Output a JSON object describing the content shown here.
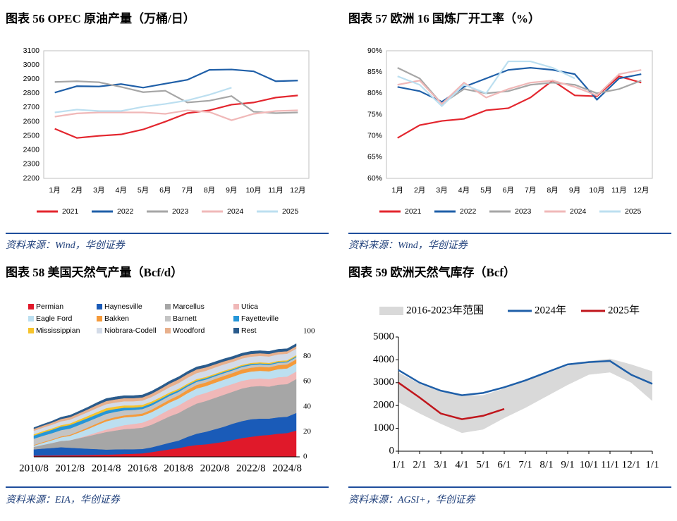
{
  "chart_data": [
    {
      "type": "line",
      "title": "图表 56   OPEC 原油产量（万桶/日）",
      "source": "资料来源：Wind，华创证券",
      "categories": [
        "1月",
        "2月",
        "3月",
        "4月",
        "5月",
        "6月",
        "7月",
        "8月",
        "9月",
        "10月",
        "11月",
        "12月"
      ],
      "ylim": [
        2200,
        3100
      ],
      "yticks": [
        2200,
        2300,
        2400,
        2500,
        2600,
        2700,
        2800,
        2900,
        3000,
        3100
      ],
      "series": [
        {
          "name": "2021",
          "color": "#e3262e",
          "values": [
            2550,
            2485,
            2500,
            2510,
            2545,
            2600,
            2660,
            2680,
            2720,
            2735,
            2770,
            2785
          ]
        },
        {
          "name": "2022",
          "color": "#1f5fa8",
          "values": [
            2805,
            2850,
            2848,
            2865,
            2840,
            2868,
            2895,
            2965,
            2968,
            2955,
            2885,
            2890
          ]
        },
        {
          "name": "2023",
          "color": "#a6a6a6",
          "values": [
            2880,
            2885,
            2878,
            2845,
            2808,
            2818,
            2735,
            2748,
            2780,
            2670,
            2660,
            2665
          ]
        },
        {
          "name": "2024",
          "color": "#f0b8b8",
          "values": [
            2635,
            2658,
            2665,
            2665,
            2665,
            2655,
            2680,
            2668,
            2610,
            2655,
            2675,
            2680
          ]
        },
        {
          "name": "2025",
          "color": "#bcdff0",
          "values": [
            2665,
            2685,
            2675,
            2675,
            2705,
            2725,
            2750,
            2790,
            2840,
            null,
            null,
            null
          ]
        }
      ]
    },
    {
      "type": "line",
      "title": "图表 57   欧洲 16 国炼厂开工率（%）",
      "source": "资料来源：Wind，华创证券",
      "categories": [
        "1月",
        "2月",
        "3月",
        "4月",
        "5月",
        "6月",
        "7月",
        "8月",
        "9月",
        "10月",
        "11月",
        "12月"
      ],
      "ylim": [
        60,
        90
      ],
      "yticks": [
        {
          "value": 60,
          "label": "60%"
        },
        {
          "value": 65,
          "label": "65%"
        },
        {
          "value": 70,
          "label": "70%"
        },
        {
          "value": 75,
          "label": "75%"
        },
        {
          "value": 80,
          "label": "80%"
        },
        {
          "value": 85,
          "label": "85%"
        },
        {
          "value": 90,
          "label": "90%"
        }
      ],
      "series": [
        {
          "name": "2021",
          "color": "#e3262e",
          "values": [
            69.5,
            72.5,
            73.5,
            74,
            76,
            76.5,
            79,
            83,
            79.5,
            79.3,
            84,
            82.5
          ]
        },
        {
          "name": "2022",
          "color": "#1f5fa8",
          "values": [
            81.5,
            80.5,
            78,
            81.5,
            83.5,
            85.5,
            86,
            85.5,
            84.5,
            78.5,
            83.5,
            84.5
          ]
        },
        {
          "name": "2023",
          "color": "#a6a6a6",
          "values": [
            86,
            83.5,
            77.5,
            81,
            80,
            80.5,
            82,
            82.5,
            82,
            80,
            81,
            83
          ]
        },
        {
          "name": "2024",
          "color": "#f0b8b8",
          "values": [
            82,
            83,
            77.5,
            82.5,
            79,
            81,
            82.5,
            83,
            81.5,
            79.5,
            84.5,
            85.5
          ]
        },
        {
          "name": "2025",
          "color": "#bcdff0",
          "values": [
            84,
            82,
            77,
            82,
            80,
            87.5,
            87.5,
            86,
            83.5,
            null,
            null,
            null
          ]
        }
      ]
    },
    {
      "type": "stacked_area",
      "title": "图表 58   美国天然气产量（Bcf/d）",
      "source": "资料来源：EIA，华创证券",
      "y_axis": "right",
      "x": [
        "2010/8",
        "2011/2",
        "2011/8",
        "2012/2",
        "2012/8",
        "2013/2",
        "2013/8",
        "2014/2",
        "2014/8",
        "2015/2",
        "2015/8",
        "2016/2",
        "2016/8",
        "2017/2",
        "2017/8",
        "2018/2",
        "2018/8",
        "2019/2",
        "2019/8",
        "2020/2",
        "2020/8",
        "2021/2",
        "2021/8",
        "2022/2",
        "2022/8",
        "2023/2",
        "2023/8",
        "2024/2",
        "2024/8",
        "2025/2"
      ],
      "ylim": [
        0,
        100
      ],
      "yticks": [
        0,
        20,
        40,
        60,
        80,
        100
      ],
      "series": [
        {
          "name": "Permian",
          "color": "#e0192a",
          "values": [
            1,
            1.1,
            1.1,
            1.2,
            1.3,
            1.4,
            1.5,
            1.7,
            1.8,
            2,
            2.3,
            2.5,
            2.8,
            3.8,
            4.9,
            6,
            7,
            8.5,
            9.5,
            10,
            11,
            12,
            13.5,
            15,
            16,
            17,
            17.5,
            18.5,
            19,
            21
          ]
        },
        {
          "name": "Haynesville",
          "color": "#1a5bb8",
          "values": [
            5,
            5.5,
            6,
            6.5,
            6,
            5.5,
            5,
            4.5,
            4,
            4,
            3.8,
            3.6,
            3.5,
            3.8,
            4.5,
            5.3,
            6,
            7.5,
            9,
            10,
            11,
            12,
            13,
            13.5,
            14,
            13.5,
            13,
            13,
            13,
            14
          ]
        },
        {
          "name": "Marcellus",
          "color": "#a6a6a6",
          "values": [
            2,
            3,
            4,
            5,
            6,
            8,
            10,
            12,
            14,
            15,
            16,
            16.5,
            17,
            18,
            19.5,
            21,
            22,
            23,
            24,
            24.5,
            25,
            25.5,
            25.5,
            26,
            26,
            26,
            25.5,
            26,
            26,
            27
          ]
        },
        {
          "name": "Utica",
          "color": "#f0b8b8",
          "values": [
            0,
            0,
            0,
            0,
            0,
            0.3,
            0.8,
            1.4,
            2,
            2.6,
            3.2,
            3.6,
            4,
            4.5,
            5,
            5.5,
            6,
            6.2,
            6.4,
            6.5,
            6.5,
            6.4,
            6.2,
            6.1,
            6,
            6,
            6,
            6,
            6,
            6
          ]
        },
        {
          "name": "Eagle Ford",
          "color": "#bcdff0",
          "values": [
            1,
            1.6,
            2.2,
            2.9,
            3.5,
            4.3,
            5,
            5.8,
            6.5,
            6.5,
            6.2,
            5.8,
            5.5,
            5.5,
            5.5,
            5.5,
            5.5,
            5.6,
            5.6,
            5.4,
            5.5,
            5.6,
            5.7,
            5.9,
            6,
            6.1,
            6.2,
            6.4,
            6.5,
            6.5
          ]
        },
        {
          "name": "Bakken",
          "color": "#f59a3a",
          "values": [
            0.5,
            0.6,
            0.6,
            0.7,
            0.8,
            1,
            1.2,
            1.3,
            1.5,
            1.6,
            1.6,
            1.7,
            1.8,
            2,
            2.2,
            2.3,
            2.5,
            2.7,
            2.8,
            2.9,
            3,
            3,
            3,
            3.1,
            3.1,
            3.2,
            3.2,
            3.2,
            3.2,
            3.2
          ]
        },
        {
          "name": "Barnett",
          "color": "#c4c4c4",
          "values": [
            5,
            5,
            5,
            5,
            5,
            4.9,
            4.8,
            4.6,
            4.5,
            4.2,
            4,
            3.7,
            3.5,
            3.3,
            3.1,
            3,
            2.8,
            2.6,
            2.5,
            2.3,
            2.2,
            2.2,
            2.1,
            2,
            2,
            1.9,
            1.8,
            1.8,
            1.7,
            1.7
          ]
        },
        {
          "name": "Fayetteville",
          "color": "#2596d8",
          "values": [
            2.5,
            2.6,
            2.7,
            2.8,
            2.8,
            2.8,
            2.7,
            2.6,
            2.5,
            2.3,
            2.1,
            1.9,
            1.8,
            1.7,
            1.5,
            1.4,
            1.3,
            1.2,
            1.1,
            1.1,
            1,
            1,
            0.9,
            0.9,
            0.9,
            0.8,
            0.8,
            0.7,
            0.7,
            0.7
          ]
        },
        {
          "name": "Mississippian",
          "color": "#f6c32b",
          "values": [
            1,
            1.1,
            1.1,
            1.2,
            1.3,
            1.5,
            1.7,
            1.9,
            2,
            1.9,
            1.8,
            1.7,
            1.6,
            1.5,
            1.4,
            1.3,
            1.2,
            1.1,
            1.1,
            1,
            1,
            1,
            0.9,
            0.9,
            0.9,
            0.9,
            0.9,
            0.9,
            0.9,
            0.9
          ]
        },
        {
          "name": "Niobrara-Codell",
          "color": "#d3dbe8",
          "values": [
            2.8,
            2.8,
            2.9,
            3,
            3,
            3,
            3.1,
            3.2,
            3.2,
            3.2,
            3.3,
            3.3,
            3.4,
            3.6,
            3.9,
            4.2,
            4.5,
            4.7,
            4.8,
            4.9,
            5,
            5,
            5,
            5,
            5,
            5.1,
            5.1,
            5.2,
            5.2,
            5.2
          ]
        },
        {
          "name": "Woodford",
          "color": "#e8b08c",
          "values": [
            1.5,
            1.6,
            1.7,
            1.9,
            2,
            2.1,
            2.2,
            2.4,
            2.5,
            2.5,
            2.5,
            2.5,
            2.5,
            2.6,
            2.7,
            2.9,
            3,
            3,
            2.9,
            2.7,
            2.5,
            2.4,
            2.3,
            2.2,
            2.2,
            2.1,
            2.1,
            2,
            2,
            2
          ]
        },
        {
          "name": "Rest",
          "color": "#2a5b8c",
          "values": [
            1,
            1.1,
            1.2,
            1.4,
            1.5,
            1.6,
            1.7,
            1.9,
            2,
            2,
            2,
            2,
            2,
            2,
            2,
            2,
            2,
            2,
            2,
            2,
            2,
            2,
            2,
            2,
            2,
            2,
            2,
            2,
            2,
            2
          ]
        }
      ]
    },
    {
      "type": "range_line",
      "title": "图表 59   欧洲天然气库存（Bcf）",
      "source": "资料来源：AGSI+，华创证券",
      "categories": [
        "1/1",
        "2/1",
        "3/1",
        "4/1",
        "5/1",
        "6/1",
        "7/1",
        "8/1",
        "9/1",
        "10/1",
        "11/1",
        "12/1",
        "1/1"
      ],
      "ylim": [
        0,
        5000
      ],
      "yticks": [
        0,
        1000,
        2000,
        3000,
        4000,
        5000
      ],
      "range": {
        "name": "2016-2023年范围",
        "color": "#d9d9d9",
        "low": [
          2150,
          1650,
          1200,
          800,
          950,
          1450,
          1900,
          2400,
          2900,
          3350,
          3450,
          3000,
          2200
        ],
        "high": [
          3450,
          2950,
          2600,
          2450,
          2450,
          2750,
          3100,
          3400,
          3750,
          3950,
          4050,
          3800,
          3500
        ]
      },
      "series": [
        {
          "name": "2024年",
          "color": "#1f5fa8",
          "values": [
            3550,
            3000,
            2650,
            2450,
            2550,
            2800,
            3100,
            3450,
            3800,
            3900,
            3950,
            3350,
            2950
          ]
        },
        {
          "name": "2025年",
          "color": "#c0161c",
          "values": [
            3000,
            2350,
            1650,
            1400,
            1550,
            1850,
            null,
            null,
            null,
            null,
            null,
            null,
            null
          ]
        }
      ]
    }
  ]
}
